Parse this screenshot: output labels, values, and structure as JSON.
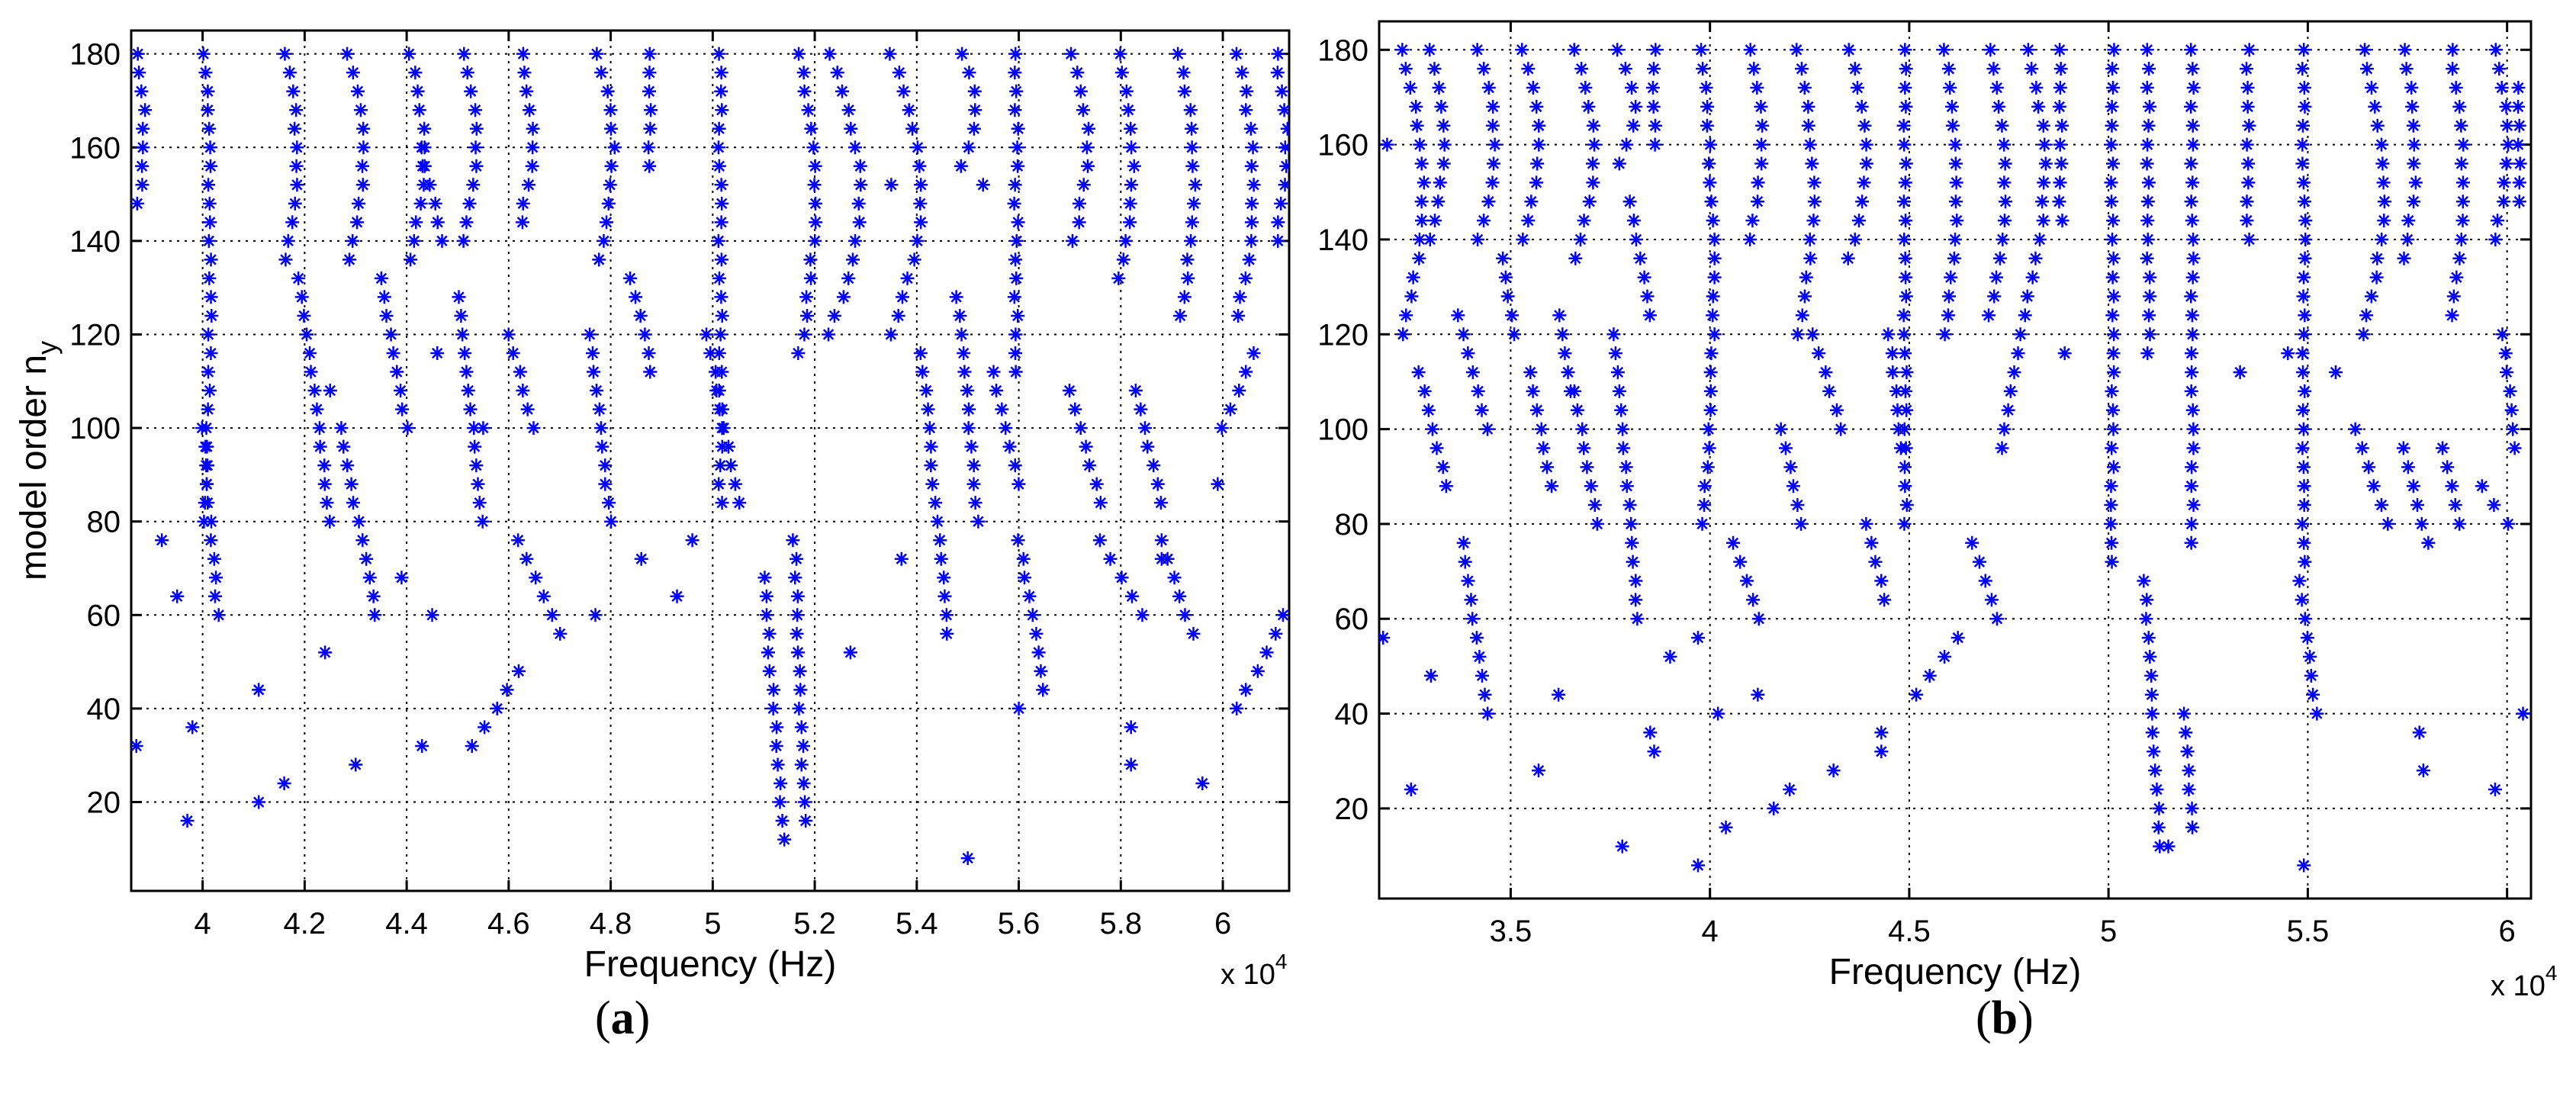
{
  "chart_data": [
    {
      "type": "scatter",
      "panel_label": "a",
      "xlabel": "Frequency (Hz)",
      "ylabel_main": "model order n",
      "ylabel_sub": "y",
      "x_exponent_prefix": "x 10",
      "x_exponent_power": "4",
      "xlim": [
        3.86,
        6.13
      ],
      "ylim": [
        1,
        185
      ],
      "xticks": [
        4.0,
        4.2,
        4.4,
        4.6,
        4.8,
        5.0,
        5.2,
        5.4,
        5.6,
        5.8,
        6.0
      ],
      "xtick_labels": [
        "4",
        "4.2",
        "4.4",
        "4.6",
        "4.8",
        "5",
        "5.2",
        "5.4",
        "5.6",
        "5.8",
        "6"
      ],
      "yticks": [
        20,
        40,
        60,
        80,
        100,
        120,
        140,
        160,
        180
      ],
      "ytick_labels": [
        "20",
        "40",
        "60",
        "80",
        "100",
        "120",
        "140",
        "160",
        "180"
      ],
      "grid": true,
      "marker": "*",
      "marker_color": "#0000ff",
      "series_columns": [
        {
          "base": 3.875,
          "shift": 0.01,
          "from": 148,
          "to": 180
        },
        {
          "base": 4.005,
          "shift": 0.01,
          "from": 80,
          "to": 180
        },
        {
          "base": 4.165,
          "shift": 0.02,
          "from": 136,
          "to": 180
        },
        {
          "base": 4.285,
          "shift": 0.03,
          "from": 136,
          "to": 180
        },
        {
          "base": 4.405,
          "shift": 0.03,
          "from": 136,
          "to": 180
        },
        {
          "base": 4.515,
          "shift": 0.02,
          "from": 140,
          "to": 180
        },
        {
          "base": 4.625,
          "shift": 0.02,
          "from": 144,
          "to": 180
        },
        {
          "base": 4.775,
          "shift": 0.03,
          "from": 136,
          "to": 180
        },
        {
          "base": 4.875,
          "shift": 0.0,
          "from": 156,
          "to": 180
        },
        {
          "base": 5.015,
          "shift": 0.0,
          "from": 84,
          "to": 180
        },
        {
          "base": 5.17,
          "shift": 0.03,
          "from": 116,
          "to": 180
        },
        {
          "base": 5.23,
          "shift": 0.06,
          "from": 120,
          "to": 180
        },
        {
          "base": 5.35,
          "shift": 0.06,
          "from": 120,
          "to": 180
        },
        {
          "base": 5.485,
          "shift": 0.03,
          "from": 156,
          "to": 180
        },
        {
          "base": 5.595,
          "shift": 0.0,
          "from": 112,
          "to": 180
        },
        {
          "base": 5.705,
          "shift": 0.03,
          "from": 140,
          "to": 180
        },
        {
          "base": 5.795,
          "shift": 0.03,
          "from": 132,
          "to": 180
        },
        {
          "base": 5.915,
          "shift": 0.03,
          "from": 124,
          "to": 180
        },
        {
          "base": 6.03,
          "shift": 0.03,
          "from": 124,
          "to": 180
        },
        {
          "base": 6.105,
          "shift": 0.02,
          "from": 140,
          "to": 180
        }
      ],
      "series_diagonals": [
        {
          "x0": 4.0,
          "y0": 100,
          "x1": 4.03,
          "y1": 60
        },
        {
          "x0": 4.19,
          "y0": 132,
          "x1": 4.25,
          "y1": 80
        },
        {
          "x0": 4.27,
          "y0": 100,
          "x1": 4.34,
          "y1": 60
        },
        {
          "x0": 4.35,
          "y0": 132,
          "x1": 4.4,
          "y1": 100
        },
        {
          "x0": 4.43,
          "y0": 160,
          "x1": 4.47,
          "y1": 140
        },
        {
          "x0": 4.5,
          "y0": 128,
          "x1": 4.55,
          "y1": 80
        },
        {
          "x0": 4.6,
          "y0": 120,
          "x1": 4.65,
          "y1": 100
        },
        {
          "x0": 4.62,
          "y0": 76,
          "x1": 4.7,
          "y1": 56
        },
        {
          "x0": 4.76,
          "y0": 120,
          "x1": 4.8,
          "y1": 80
        },
        {
          "x0": 4.84,
          "y0": 132,
          "x1": 4.88,
          "y1": 112
        },
        {
          "x0": 4.53,
          "y0": 32,
          "x1": 4.62,
          "y1": 48
        },
        {
          "x0": 4.99,
          "y0": 120,
          "x1": 5.05,
          "y1": 84
        },
        {
          "x0": 5.1,
          "y0": 68,
          "x1": 5.14,
          "y1": 12
        },
        {
          "x0": 5.16,
          "y0": 76,
          "x1": 5.18,
          "y1": 16
        },
        {
          "x0": 5.41,
          "y0": 116,
          "x1": 5.46,
          "y1": 56
        },
        {
          "x0": 5.48,
          "y0": 128,
          "x1": 5.52,
          "y1": 80
        },
        {
          "x0": 5.55,
          "y0": 112,
          "x1": 5.6,
          "y1": 88
        },
        {
          "x0": 5.6,
          "y0": 76,
          "x1": 5.65,
          "y1": 44
        },
        {
          "x0": 5.7,
          "y0": 108,
          "x1": 5.76,
          "y1": 84
        },
        {
          "x0": 5.76,
          "y0": 76,
          "x1": 5.84,
          "y1": 60
        },
        {
          "x0": 5.83,
          "y0": 108,
          "x1": 5.88,
          "y1": 84
        },
        {
          "x0": 5.88,
          "y0": 76,
          "x1": 5.94,
          "y1": 56
        },
        {
          "x0": 6.0,
          "y0": 100,
          "x1": 6.06,
          "y1": 116
        },
        {
          "x0": 6.03,
          "y0": 40,
          "x1": 6.12,
          "y1": 60
        }
      ],
      "series_scatter": [
        [
          3.87,
          32
        ],
        [
          3.92,
          76
        ],
        [
          3.95,
          64
        ],
        [
          3.97,
          16
        ],
        [
          3.98,
          36
        ],
        [
          4.11,
          44
        ],
        [
          4.11,
          20
        ],
        [
          4.16,
          24
        ],
        [
          4.24,
          52
        ],
        [
          4.3,
          28
        ],
        [
          4.43,
          32
        ],
        [
          4.45,
          60
        ],
        [
          4.39,
          68
        ],
        [
          4.86,
          72
        ],
        [
          4.93,
          64
        ],
        [
          4.96,
          76
        ],
        [
          4.77,
          60
        ],
        [
          5.27,
          52
        ],
        [
          5.37,
          72
        ],
        [
          5.5,
          8
        ],
        [
          5.6,
          40
        ],
        [
          5.82,
          36
        ],
        [
          5.82,
          28
        ],
        [
          5.96,
          24
        ],
        [
          5.88,
          72
        ],
        [
          5.99,
          88
        ],
        [
          4.55,
          100
        ],
        [
          4.46,
          116
        ],
        [
          4.25,
          108
        ],
        [
          5.35,
          152
        ],
        [
          5.53,
          152
        ]
      ]
    },
    {
      "type": "scatter",
      "panel_label": "b",
      "xlabel": "Frequency (Hz)",
      "x_exponent_prefix": "x 10",
      "x_exponent_power": "4",
      "xlim": [
        3.17,
        6.06
      ],
      "ylim": [
        1,
        186
      ],
      "xticks": [
        3.5,
        4.0,
        4.5,
        5.0,
        5.5,
        6.0
      ],
      "xtick_labels": [
        "3.5",
        "4",
        "4.5",
        "5",
        "5.5",
        "6"
      ],
      "yticks": [
        20,
        40,
        60,
        80,
        100,
        120,
        140,
        160,
        180
      ],
      "ytick_labels": [
        "20",
        "40",
        "60",
        "80",
        "100",
        "120",
        "140",
        "160",
        "180"
      ],
      "grid": true,
      "marker": "*",
      "marker_color": "#0000ff",
      "series_columns": [
        {
          "base": 3.23,
          "shift": 0.05,
          "from": 120,
          "to": 180
        },
        {
          "base": 3.3,
          "shift": 0.03,
          "from": 140,
          "to": 180
        },
        {
          "base": 3.42,
          "shift": 0.04,
          "from": 140,
          "to": 180
        },
        {
          "base": 3.53,
          "shift": 0.04,
          "from": 140,
          "to": 180
        },
        {
          "base": 3.66,
          "shift": 0.05,
          "from": 136,
          "to": 180
        },
        {
          "base": 3.77,
          "shift": 0.04,
          "from": 156,
          "to": 180
        },
        {
          "base": 3.86,
          "shift": 0.0,
          "from": 160,
          "to": 180
        },
        {
          "base": 3.98,
          "shift": 0.03,
          "from": 80,
          "to": 180
        },
        {
          "base": 4.1,
          "shift": 0.03,
          "from": 140,
          "to": 180
        },
        {
          "base": 4.22,
          "shift": 0.04,
          "from": 120,
          "to": 180
        },
        {
          "base": 4.35,
          "shift": 0.04,
          "from": 136,
          "to": 180
        },
        {
          "base": 4.49,
          "shift": 0.0,
          "from": 80,
          "to": 180
        },
        {
          "base": 4.59,
          "shift": 0.03,
          "from": 120,
          "to": 180
        },
        {
          "base": 4.7,
          "shift": 0.04,
          "from": 124,
          "to": 180
        },
        {
          "base": 4.8,
          "shift": 0.04,
          "from": 128,
          "to": 180
        },
        {
          "base": 4.88,
          "shift": 0.0,
          "from": 144,
          "to": 180
        },
        {
          "base": 5.01,
          "shift": 0.0,
          "from": 72,
          "to": 180
        },
        {
          "base": 5.1,
          "shift": 0.0,
          "from": 116,
          "to": 180
        },
        {
          "base": 5.21,
          "shift": 0.0,
          "from": 76,
          "to": 180
        },
        {
          "base": 5.35,
          "shift": 0.0,
          "from": 140,
          "to": 180
        },
        {
          "base": 5.49,
          "shift": 0.0,
          "from": 72,
          "to": 180
        },
        {
          "base": 5.64,
          "shift": 0.05,
          "from": 120,
          "to": 180
        },
        {
          "base": 5.74,
          "shift": 0.03,
          "from": 136,
          "to": 180
        },
        {
          "base": 5.86,
          "shift": 0.03,
          "from": 124,
          "to": 180
        },
        {
          "base": 5.97,
          "shift": 0.03,
          "from": 140,
          "to": 180
        },
        {
          "base": 6.03,
          "shift": 0.0,
          "from": 148,
          "to": 172
        }
      ],
      "series_diagonals": [
        {
          "x0": 3.27,
          "y0": 112,
          "x1": 3.34,
          "y1": 88
        },
        {
          "x0": 3.37,
          "y0": 124,
          "x1": 3.44,
          "y1": 100
        },
        {
          "x0": 3.38,
          "y0": 76,
          "x1": 3.44,
          "y1": 40
        },
        {
          "x0": 3.48,
          "y0": 136,
          "x1": 3.51,
          "y1": 120
        },
        {
          "x0": 3.55,
          "y0": 112,
          "x1": 3.6,
          "y1": 88
        },
        {
          "x0": 3.62,
          "y0": 124,
          "x1": 3.65,
          "y1": 108
        },
        {
          "x0": 3.66,
          "y0": 108,
          "x1": 3.72,
          "y1": 80
        },
        {
          "x0": 3.76,
          "y0": 120,
          "x1": 3.82,
          "y1": 60
        },
        {
          "x0": 3.8,
          "y0": 148,
          "x1": 3.85,
          "y1": 124
        },
        {
          "x0": 4.06,
          "y0": 76,
          "x1": 4.12,
          "y1": 60
        },
        {
          "x0": 4.18,
          "y0": 100,
          "x1": 4.23,
          "y1": 80
        },
        {
          "x0": 4.26,
          "y0": 120,
          "x1": 4.33,
          "y1": 100
        },
        {
          "x0": 4.39,
          "y0": 80,
          "x1": 4.44,
          "y1": 64
        },
        {
          "x0": 4.45,
          "y0": 120,
          "x1": 4.48,
          "y1": 96
        },
        {
          "x0": 4.52,
          "y0": 44,
          "x1": 4.62,
          "y1": 56
        },
        {
          "x0": 4.66,
          "y0": 76,
          "x1": 4.72,
          "y1": 60
        },
        {
          "x0": 4.79,
          "y0": 124,
          "x1": 4.73,
          "y1": 96
        },
        {
          "x0": 5.09,
          "y0": 68,
          "x1": 5.13,
          "y1": 12
        },
        {
          "x0": 5.19,
          "y0": 40,
          "x1": 5.21,
          "y1": 16
        },
        {
          "x0": 5.48,
          "y0": 68,
          "x1": 5.52,
          "y1": 40
        },
        {
          "x0": 5.62,
          "y0": 100,
          "x1": 5.7,
          "y1": 80
        },
        {
          "x0": 5.74,
          "y0": 96,
          "x1": 5.8,
          "y1": 76
        },
        {
          "x0": 5.84,
          "y0": 96,
          "x1": 5.88,
          "y1": 80
        },
        {
          "x0": 5.94,
          "y0": 88,
          "x1": 6.0,
          "y1": 80
        },
        {
          "x0": 5.99,
          "y0": 120,
          "x1": 6.02,
          "y1": 96
        }
      ],
      "series_scatter": [
        [
          3.18,
          56
        ],
        [
          3.25,
          24
        ],
        [
          3.3,
          48
        ],
        [
          3.57,
          28
        ],
        [
          3.62,
          44
        ],
        [
          3.78,
          12
        ],
        [
          3.85,
          36
        ],
        [
          3.86,
          32
        ],
        [
          3.97,
          8
        ],
        [
          4.02,
          40
        ],
        [
          4.04,
          16
        ],
        [
          4.12,
          44
        ],
        [
          4.16,
          20
        ],
        [
          4.2,
          24
        ],
        [
          4.31,
          28
        ],
        [
          4.43,
          36
        ],
        [
          4.43,
          32
        ],
        [
          3.9,
          52
        ],
        [
          3.97,
          56
        ],
        [
          5.15,
          12
        ],
        [
          5.49,
          8
        ],
        [
          5.78,
          36
        ],
        [
          5.79,
          28
        ],
        [
          5.97,
          24
        ],
        [
          6.04,
          40
        ],
        [
          4.89,
          116
        ],
        [
          5.33,
          112
        ],
        [
          5.45,
          116
        ],
        [
          5.57,
          112
        ],
        [
          3.19,
          160
        ]
      ]
    }
  ],
  "caption_a": "a",
  "caption_b": "b",
  "caption_open": "(",
  "caption_close": ")"
}
